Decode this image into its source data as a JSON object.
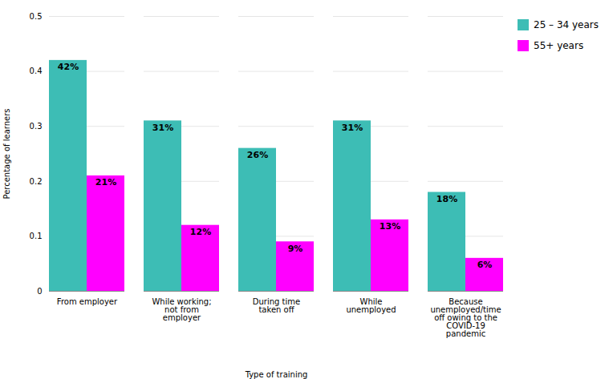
{
  "chart_data": {
    "type": "bar",
    "categories": [
      "From employer",
      "While working;\nnot from\nemployer",
      "During time\ntaken off",
      "While\nunemployed",
      "Because\nunemployed/time\noff owing to the\nCOVID-19\npandemic"
    ],
    "series": [
      {
        "name": "25 – 34 years",
        "color": "#3dbdb5",
        "values": [
          0.42,
          0.31,
          0.26,
          0.31,
          0.18
        ],
        "value_labels": [
          "42%",
          "31%",
          "26%",
          "31%",
          "18%"
        ]
      },
      {
        "name": "55+ years",
        "color": "#ff00ff",
        "values": [
          0.21,
          0.12,
          0.09,
          0.13,
          0.06
        ],
        "value_labels": [
          "21%",
          "12%",
          "9%",
          "13%",
          "6%"
        ]
      }
    ],
    "xlabel": "Type of training",
    "ylabel": "Percentage of learners",
    "ylim": [
      0,
      0.5
    ],
    "yticks": [
      0,
      0.1,
      0.2,
      0.3,
      0.4,
      0.5
    ],
    "grid": true,
    "legend": "right",
    "data_labels": true
  }
}
